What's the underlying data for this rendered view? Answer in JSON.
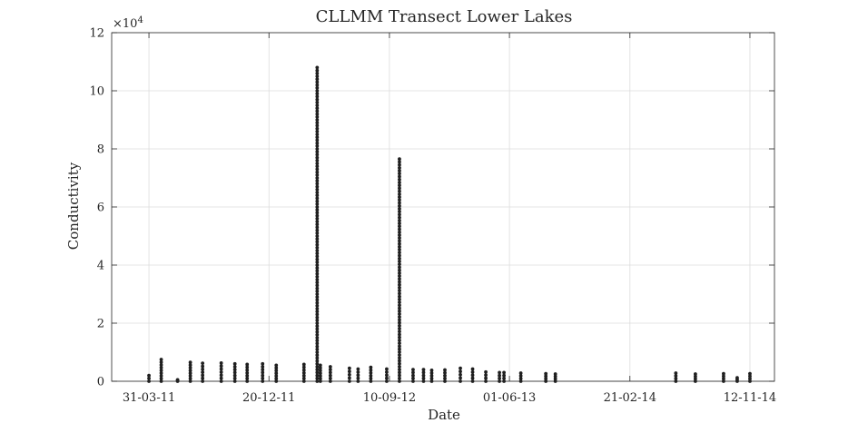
{
  "chart_data": {
    "type": "scatter",
    "title": "CLLMM Transect Lower Lakes",
    "xlabel": "Date",
    "ylabel": "Conductivity",
    "y_exponent_label": "×10^4",
    "y_exponent_base": "×10",
    "y_exponent_power": "4",
    "xlim": [
      "2011-01-08",
      "2015-01-05"
    ],
    "ylim": [
      0,
      120000
    ],
    "x_ticks": [
      {
        "date": "2011-03-31",
        "label": "31-03-11"
      },
      {
        "date": "2011-12-20",
        "label": "20-12-11"
      },
      {
        "date": "2012-09-10",
        "label": "10-09-12"
      },
      {
        "date": "2013-06-01",
        "label": "01-06-13"
      },
      {
        "date": "2014-02-21",
        "label": "21-02-14"
      },
      {
        "date": "2014-11-12",
        "label": "12-11-14"
      }
    ],
    "y_ticks": [
      {
        "value": 0,
        "label": "0"
      },
      {
        "value": 20000,
        "label": "2"
      },
      {
        "value": 40000,
        "label": "4"
      },
      {
        "value": 60000,
        "label": "6"
      },
      {
        "value": 80000,
        "label": "8"
      },
      {
        "value": 100000,
        "label": "10"
      },
      {
        "value": 120000,
        "label": "12"
      }
    ],
    "grid": true,
    "marker_color": "#1f1f1f",
    "line_color": "#b0b0b0",
    "grid_color": "#dcdcdc",
    "series": [
      {
        "x": [
          "2011-03-31",
          "2011-04-27",
          "2011-06-02",
          "2011-06-30",
          "2011-07-27",
          "2011-09-06",
          "2011-10-06",
          "2011-11-02",
          "2011-12-06",
          "2012-01-05",
          "2012-03-06",
          "2012-04-04",
          "2012-04-11",
          "2012-05-03",
          "2012-06-14",
          "2012-07-03",
          "2012-07-31",
          "2012-09-04",
          "2012-10-02",
          "2012-11-01",
          "2012-11-24",
          "2012-12-12",
          "2013-01-10",
          "2013-02-13",
          "2013-03-12",
          "2013-04-10",
          "2013-05-10",
          "2013-05-20",
          "2013-06-26",
          "2013-08-20",
          "2013-09-10",
          "2014-06-02",
          "2014-07-15",
          "2014-09-15",
          "2014-10-15",
          "2014-11-12"
        ],
        "y_ranges": [
          [
            0,
            2000
          ],
          [
            0,
            7500
          ],
          [
            0,
            500
          ],
          [
            0,
            6500
          ],
          [
            0,
            6200
          ],
          [
            0,
            6300
          ],
          [
            0,
            6000
          ],
          [
            0,
            5800
          ],
          [
            0,
            6000
          ],
          [
            0,
            5500
          ],
          [
            0,
            5800
          ],
          [
            0,
            108000
          ],
          [
            0,
            5500
          ],
          [
            0,
            5000
          ],
          [
            0,
            4500
          ],
          [
            0,
            4200
          ],
          [
            0,
            4800
          ],
          [
            0,
            4200
          ],
          [
            0,
            76500
          ],
          [
            0,
            4000
          ],
          [
            0,
            4000
          ],
          [
            0,
            3800
          ],
          [
            0,
            3900
          ],
          [
            0,
            4500
          ],
          [
            0,
            4200
          ],
          [
            0,
            3200
          ],
          [
            0,
            3000
          ],
          [
            0,
            3000
          ],
          [
            0,
            2800
          ],
          [
            0,
            2600
          ],
          [
            0,
            2500
          ],
          [
            0,
            2800
          ],
          [
            0,
            2500
          ],
          [
            0,
            2600
          ],
          [
            0,
            1200
          ],
          [
            0,
            2600
          ]
        ]
      }
    ]
  }
}
